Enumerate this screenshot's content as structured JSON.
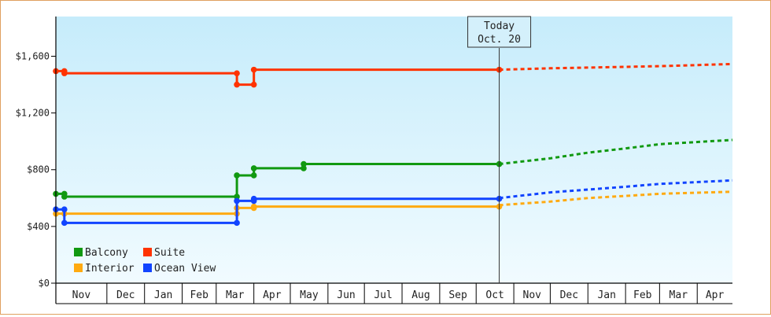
{
  "chart_data": {
    "type": "line",
    "title": "",
    "xlabel": "",
    "ylabel": "",
    "x_tick_labels": [
      "Nov",
      "Dec",
      "Jan",
      "Feb",
      "Mar",
      "Apr",
      "May",
      "Jun",
      "Jul",
      "Aug",
      "Sep",
      "Oct",
      "Nov",
      "Dec",
      "Jan",
      "Feb",
      "Mar",
      "Apr"
    ],
    "y_ticks": [
      0,
      400,
      800,
      1200,
      1600
    ],
    "y_tick_labels": [
      "$0",
      "$400",
      "$800",
      "$1,200",
      "$1,600"
    ],
    "ylim": [
      0,
      1880
    ],
    "x_range": [
      "2021-10-20",
      "2023-04-30"
    ],
    "today_marker": {
      "line1": "Today",
      "line2": "Oct. 20",
      "date": "2022-10-20"
    },
    "legend": {
      "placement": "bottom-left"
    },
    "series": [
      {
        "name": "Balcony",
        "color": "#119911",
        "points": [
          [
            "2021-10-20",
            630
          ],
          [
            "2021-10-27",
            630
          ],
          [
            "2021-10-27",
            610
          ],
          [
            "2022-03-18",
            610
          ],
          [
            "2022-03-18",
            760
          ],
          [
            "2022-04-01",
            760
          ],
          [
            "2022-04-01",
            810
          ],
          [
            "2022-05-12",
            810
          ],
          [
            "2022-05-12",
            840
          ],
          [
            "2022-10-20",
            840
          ]
        ],
        "forecast": [
          [
            "2022-10-20",
            840
          ],
          [
            "2022-12-01",
            880
          ],
          [
            "2023-01-01",
            920
          ],
          [
            "2023-02-01",
            950
          ],
          [
            "2023-03-01",
            980
          ],
          [
            "2023-04-30",
            1010
          ]
        ]
      },
      {
        "name": "Suite",
        "color": "#ff3300",
        "points": [
          [
            "2021-10-20",
            1495
          ],
          [
            "2021-10-27",
            1495
          ],
          [
            "2021-10-27",
            1480
          ],
          [
            "2022-03-18",
            1480
          ],
          [
            "2022-03-18",
            1400
          ],
          [
            "2022-04-01",
            1400
          ],
          [
            "2022-04-01",
            1505
          ],
          [
            "2022-10-20",
            1505
          ]
        ],
        "forecast": [
          [
            "2022-10-20",
            1505
          ],
          [
            "2022-12-01",
            1515
          ],
          [
            "2023-01-01",
            1520
          ],
          [
            "2023-02-01",
            1525
          ],
          [
            "2023-03-01",
            1530
          ],
          [
            "2023-04-30",
            1545
          ]
        ]
      },
      {
        "name": "Interior",
        "color": "#ffaa11",
        "points": [
          [
            "2021-10-20",
            490
          ],
          [
            "2021-10-27",
            490
          ],
          [
            "2022-03-18",
            490
          ],
          [
            "2022-03-18",
            530
          ],
          [
            "2022-04-01",
            530
          ],
          [
            "2022-04-01",
            540
          ],
          [
            "2022-10-20",
            540
          ]
        ],
        "forecast": [
          [
            "2022-10-20",
            550
          ],
          [
            "2022-12-01",
            575
          ],
          [
            "2023-01-01",
            600
          ],
          [
            "2023-02-01",
            615
          ],
          [
            "2023-03-01",
            630
          ],
          [
            "2023-04-30",
            645
          ]
        ]
      },
      {
        "name": "Ocean View",
        "color": "#1144ff",
        "points": [
          [
            "2021-10-20",
            520
          ],
          [
            "2021-10-27",
            520
          ],
          [
            "2021-10-27",
            425
          ],
          [
            "2022-03-18",
            425
          ],
          [
            "2022-03-18",
            580
          ],
          [
            "2022-04-01",
            580
          ],
          [
            "2022-04-01",
            595
          ],
          [
            "2022-10-20",
            595
          ]
        ],
        "forecast": [
          [
            "2022-10-20",
            600
          ],
          [
            "2022-12-01",
            640
          ],
          [
            "2023-01-01",
            660
          ],
          [
            "2023-02-01",
            680
          ],
          [
            "2023-03-01",
            700
          ],
          [
            "2023-04-30",
            725
          ]
        ]
      }
    ]
  }
}
